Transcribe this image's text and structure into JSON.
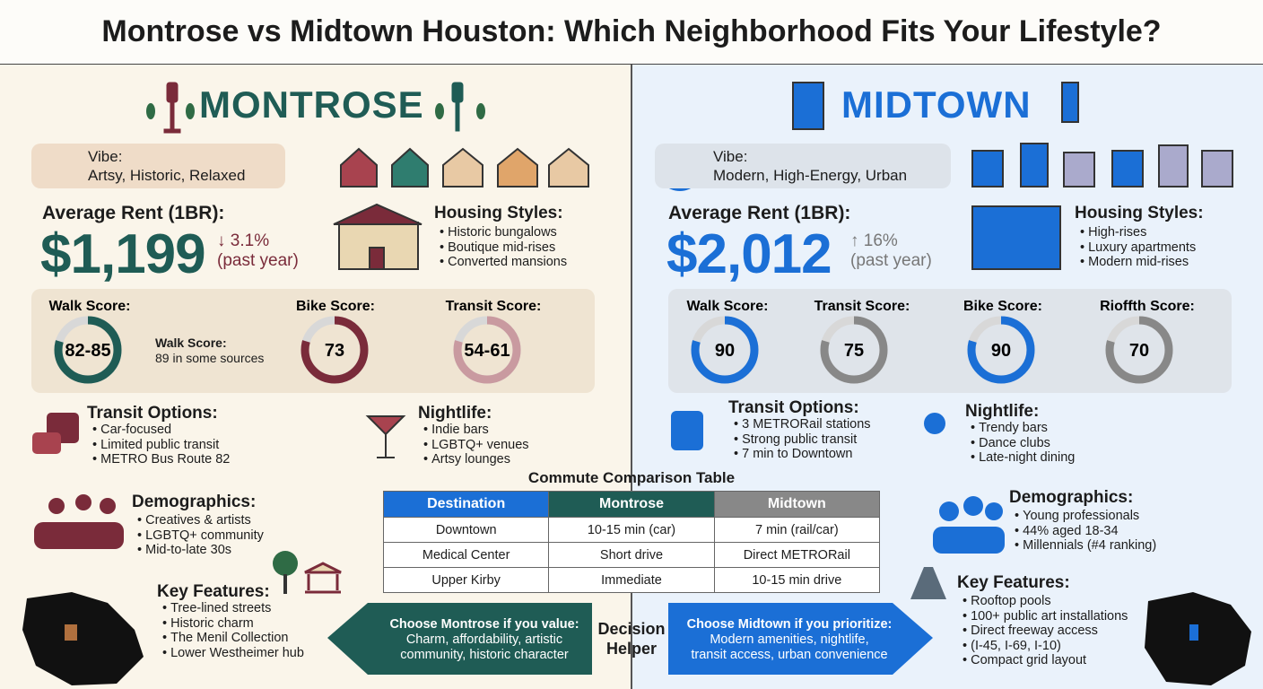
{
  "title": "Montrose vs Midtown Houston: Which Neighborhood Fits Your Lifestyle?",
  "montrose": {
    "name": "MONTROSE",
    "vibe_label": "Vibe:",
    "vibe": "Artsy, Historic, Relaxed",
    "rent_label": "Average Rent (1BR):",
    "rent": "$1,199",
    "rent_change": "↓ 3.1%",
    "rent_period": "(past year)",
    "housing_title": "Housing Styles:",
    "housing": [
      "Historic bungalows",
      "Boutique mid-rises",
      "Converted mansions"
    ],
    "scores": [
      {
        "label": "Walk Score:",
        "value": "82-85"
      },
      {
        "label": "Bike Score:",
        "value": 73
      },
      {
        "label": "Transit Score:",
        "value": "54-61"
      }
    ],
    "walk_note_label": "Walk Score:",
    "walk_note": "89 in some sources",
    "transit_title": "Transit Options:",
    "transit": [
      "Car-focused",
      "Limited public transit",
      "METRO Bus Route 82"
    ],
    "nightlife_title": "Nightlife:",
    "nightlife": [
      "Indie bars",
      "LGBTQ+ venues",
      "Artsy lounges"
    ],
    "demographics_title": "Demographics:",
    "demographics": [
      "Creatives & artists",
      "LGBTQ+ community",
      "Mid-to-late 30s"
    ],
    "features_title": "Key Features:",
    "features": [
      "Tree-lined streets",
      "Historic charm",
      "The Menil Collection",
      "Lower Westheimer hub"
    ]
  },
  "midtown": {
    "name": "MIDTOWN",
    "vibe_label": "Vibe:",
    "vibe": "Modern, High-Energy, Urban",
    "rent_label": "Average Rent (1BR):",
    "rent": "$2,012",
    "rent_change": "↑ 16%",
    "rent_period": "(past year)",
    "housing_title": "Housing Styles:",
    "housing": [
      "High-rises",
      "Luxury apartments",
      "Modern mid-rises"
    ],
    "scores": [
      {
        "label": "Walk Score:",
        "value": 90
      },
      {
        "label": "Transit Score:",
        "value": 75
      },
      {
        "label": "Bike Score:",
        "value": 90
      },
      {
        "label": "Rioffth Score:",
        "value": 70
      }
    ],
    "transit_title": "Transit Options:",
    "transit": [
      "3 METRORail stations",
      "Strong public transit",
      "7 min to Downtown"
    ],
    "nightlife_title": "Nightlife:",
    "nightlife": [
      "Trendy bars",
      "Dance clubs",
      "Late-night dining"
    ],
    "demographics_title": "Demographics:",
    "demographics": [
      "Young professionals",
      "44% aged 18-34",
      "Millennials (#4 ranking)"
    ],
    "features_title": "Key Features:",
    "features": [
      "Rooftop pools",
      "100+ public art installations",
      "Direct freeway access",
      "(I-45, I-69, I-10)",
      "Compact grid layout"
    ]
  },
  "commute": {
    "title": "Commute Comparison Table",
    "header": [
      "Destination",
      "Montrose",
      "Midtown"
    ],
    "rows": [
      [
        "Downtown",
        "10-15 min (car)",
        "7 min (rail/car)"
      ],
      [
        "Medical Center",
        "Short drive",
        "Direct METRORail"
      ],
      [
        "Upper Kirby",
        "Immediate",
        "10-15 min drive"
      ]
    ]
  },
  "decision": {
    "label": "Decision Helper",
    "montrose": [
      "Choose Montrose if you value:",
      "Charm, affordability, artistic",
      "community, historic character"
    ],
    "midtown": [
      "Choose Midtown if you prioritize:",
      "Modern amenities, nightlife,",
      "transit access, urban convenience"
    ]
  }
}
